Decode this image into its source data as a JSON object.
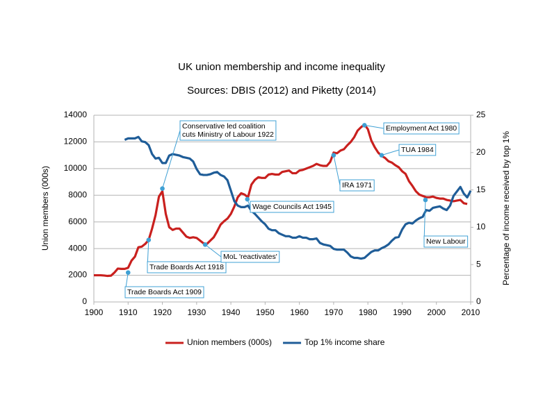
{
  "chart_data": {
    "type": "line",
    "title": "UK union membership and income inequality",
    "subtitle": "Sources: DBIS (2012) and Piketty (2014)",
    "y_label": "Union members (000s)",
    "y2_label": "Percentage of income received by top 1%",
    "x": [
      1900,
      1901,
      1902,
      1903,
      1904,
      1905,
      1906,
      1907,
      1908,
      1909,
      1910,
      1911,
      1912,
      1913,
      1914,
      1915,
      1916,
      1917,
      1918,
      1919,
      1920,
      1921,
      1922,
      1923,
      1924,
      1925,
      1926,
      1927,
      1928,
      1929,
      1930,
      1931,
      1932,
      1933,
      1934,
      1935,
      1936,
      1937,
      1938,
      1939,
      1940,
      1941,
      1942,
      1943,
      1944,
      1945,
      1946,
      1947,
      1948,
      1949,
      1950,
      1951,
      1952,
      1953,
      1954,
      1955,
      1956,
      1957,
      1958,
      1959,
      1960,
      1961,
      1962,
      1963,
      1964,
      1965,
      1966,
      1967,
      1968,
      1969,
      1970,
      1971,
      1972,
      1973,
      1974,
      1975,
      1976,
      1977,
      1978,
      1979,
      1980,
      1981,
      1982,
      1983,
      1984,
      1985,
      1986,
      1987,
      1988,
      1989,
      1990,
      1991,
      1992,
      1993,
      1994,
      1995,
      1996,
      1997,
      1998,
      1999,
      2000,
      2001,
      2002,
      2003,
      2004,
      2005,
      2006,
      2007,
      2008,
      2009,
      2010
    ],
    "series": [
      {
        "name": "Union members (000s)",
        "color": "#c9201e",
        "axis": "y",
        "values": [
          2000,
          2000,
          2000,
          1980,
          1950,
          1970,
          2200,
          2500,
          2480,
          2480,
          2560,
          3100,
          3400,
          4100,
          4150,
          4350,
          4650,
          5500,
          6500,
          7900,
          8300,
          6600,
          5600,
          5400,
          5500,
          5500,
          5200,
          4900,
          4800,
          4850,
          4800,
          4600,
          4400,
          4350,
          4600,
          4850,
          5300,
          5800,
          6050,
          6250,
          6600,
          7150,
          7850,
          8150,
          8050,
          7850,
          8800,
          9150,
          9350,
          9300,
          9300,
          9550,
          9600,
          9550,
          9550,
          9750,
          9800,
          9850,
          9650,
          9650,
          9850,
          9900,
          10000,
          10100,
          10200,
          10350,
          10250,
          10200,
          10200,
          10500,
          11200,
          11150,
          11350,
          11450,
          11750,
          12000,
          12350,
          12850,
          13100,
          13300,
          12950,
          12100,
          11600,
          11200,
          10950,
          10800,
          10550,
          10450,
          10250,
          10100,
          9800,
          9600,
          9050,
          8700,
          8300,
          8050,
          7950,
          7850,
          7850,
          7900,
          7800,
          7750,
          7750,
          7650,
          7600,
          7550,
          7600,
          7650,
          7400,
          7350,
          null
        ]
      },
      {
        "name": "Top 1% income share",
        "color": "#1f5d98",
        "axis": "y2",
        "values": [
          null,
          null,
          null,
          null,
          null,
          null,
          null,
          null,
          null,
          21.7,
          21.9,
          21.9,
          21.9,
          22.1,
          21.5,
          21.4,
          21.0,
          19.8,
          19.2,
          19.3,
          18.6,
          18.6,
          19.6,
          19.8,
          19.7,
          19.6,
          19.4,
          19.3,
          19.2,
          18.8,
          17.8,
          17.1,
          17.0,
          17.0,
          17.1,
          17.3,
          17.4,
          17.0,
          16.8,
          16.3,
          14.9,
          13.5,
          12.9,
          12.7,
          12.7,
          12.9,
          12.2,
          11.8,
          11.3,
          10.8,
          10.4,
          9.8,
          9.6,
          9.6,
          9.2,
          9.0,
          8.8,
          8.8,
          8.6,
          8.6,
          8.8,
          8.6,
          8.6,
          8.4,
          8.4,
          8.5,
          7.9,
          7.7,
          7.6,
          7.5,
          7.1,
          7.0,
          7.0,
          7.0,
          6.6,
          6.1,
          5.9,
          5.9,
          5.8,
          5.9,
          6.3,
          6.7,
          6.9,
          6.9,
          7.2,
          7.4,
          7.7,
          8.2,
          8.6,
          8.7,
          9.7,
          10.4,
          10.6,
          10.5,
          10.9,
          11.2,
          11.4,
          12.3,
          12.2,
          12.6,
          12.7,
          12.8,
          12.5,
          12.3,
          12.9,
          14.2,
          14.8,
          15.4,
          14.5,
          14.0,
          14.9
        ]
      }
    ],
    "xlim": [
      1900,
      2010
    ],
    "xticks": [
      1900,
      1910,
      1920,
      1930,
      1940,
      1950,
      1960,
      1970,
      1980,
      1990,
      2000,
      2010
    ],
    "ylim": [
      0,
      14000
    ],
    "yticks": [
      0,
      2000,
      4000,
      6000,
      8000,
      10000,
      12000,
      14000
    ],
    "y2lim": [
      0,
      25
    ],
    "y2ticks": [
      0,
      5,
      10,
      15,
      20,
      25
    ],
    "grid": true,
    "legend": "bottom",
    "annotation_color": "#3fa0d4",
    "annotations": [
      {
        "x": 1910,
        "y": 2200,
        "lines": [
          "Trade Boards Act 1909"
        ]
      },
      {
        "x": 1916,
        "y": 4650,
        "lines": [
          "Trade Boards Act 1918"
        ]
      },
      {
        "x": 1920,
        "y": 8500,
        "lines": [
          "Conservative led coalition",
          "cuts Ministry of Labour 1922"
        ]
      },
      {
        "x": 1932.5,
        "y": 4300,
        "lines": [
          "MoL 'reactivates'"
        ]
      },
      {
        "x": 1944.8,
        "y": 7700,
        "lines": [
          "Wage Councils Act 1945"
        ]
      },
      {
        "x": 1970,
        "y": 11000,
        "lines": [
          "IRA 1971"
        ]
      },
      {
        "x": 1979,
        "y": 13250,
        "lines": [
          "Employment Act 1980"
        ]
      },
      {
        "x": 1984,
        "y": 11000,
        "lines": [
          "TUA 1984"
        ]
      },
      {
        "x": 1996.8,
        "y": 7650,
        "lines": [
          "New Labour"
        ]
      }
    ]
  }
}
